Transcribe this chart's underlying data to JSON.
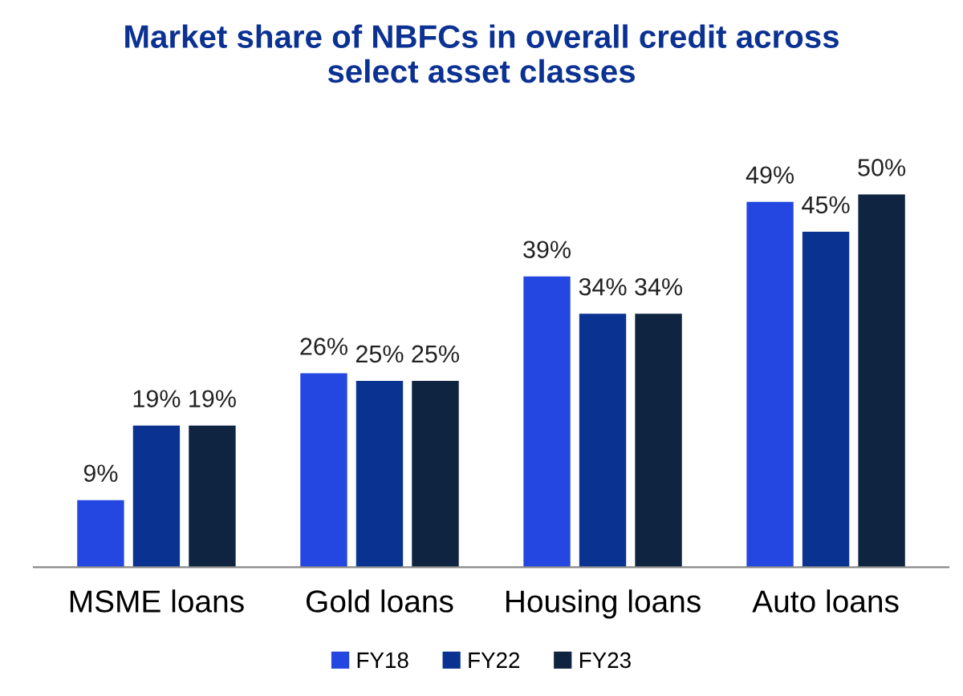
{
  "chart_data": {
    "type": "bar",
    "title": "Market share of NBFCs in overall credit across\nselect asset classes",
    "categories": [
      "MSME loans",
      "Gold loans",
      "Housing loans",
      "Auto loans"
    ],
    "series": [
      {
        "name": "FY18",
        "color": "#2347e0",
        "values": [
          9,
          26,
          39,
          49
        ],
        "value_labels": [
          "9%",
          "26%",
          "39%",
          "49%"
        ]
      },
      {
        "name": "FY22",
        "color": "#0a3391",
        "values": [
          19,
          25,
          34,
          45
        ],
        "value_labels": [
          "19%",
          "25%",
          "34%",
          "45%"
        ]
      },
      {
        "name": "FY23",
        "color": "#0f2440",
        "values": [
          19,
          25,
          34,
          50
        ],
        "value_labels": [
          "19%",
          "25%",
          "34%",
          "50%"
        ]
      }
    ],
    "legend": "bottom"
  }
}
